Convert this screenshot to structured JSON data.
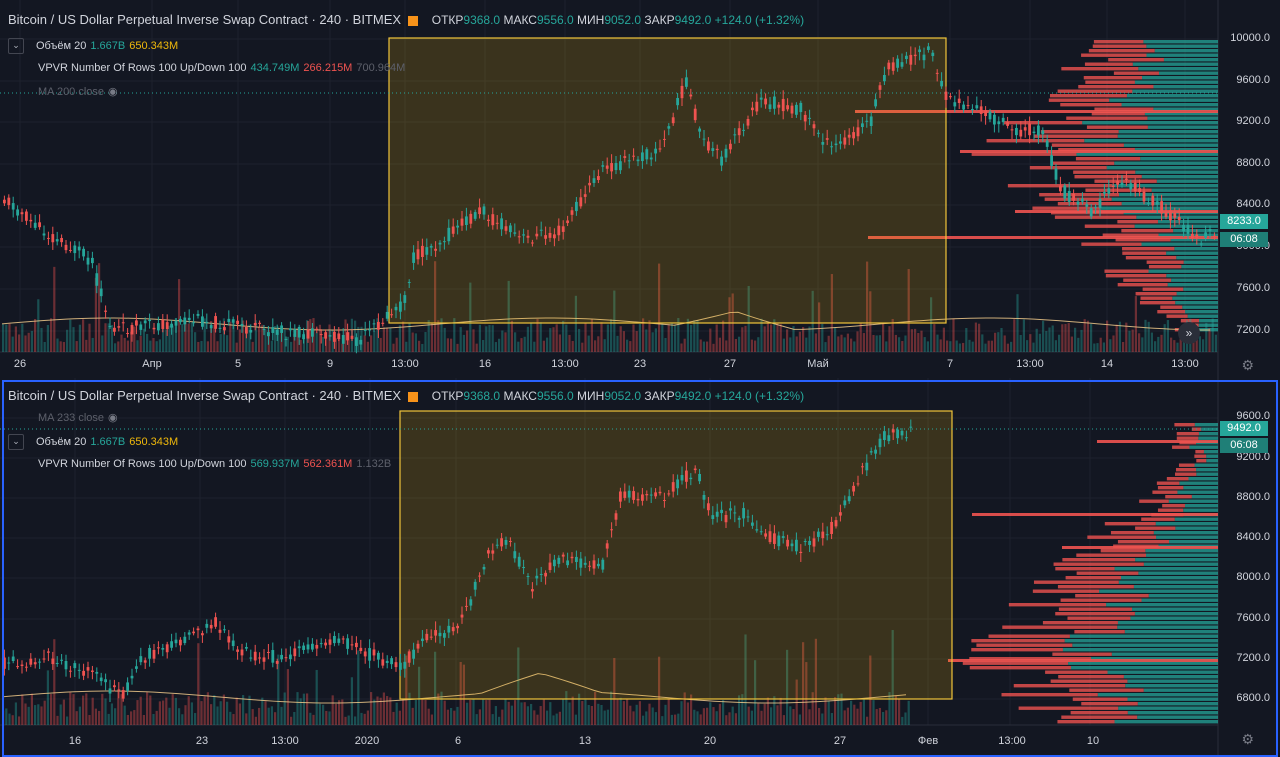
{
  "colors": {
    "up": "#26a69a",
    "down": "#ef5350",
    "bg": "#131722",
    "box": "#f0b90b",
    "accent": "#2962ff"
  },
  "top": {
    "title": "Bitcoin / US Dollar Perpetual Inverse Swap Contract · 240 · BITMEX",
    "ohlc": {
      "o_label": "ОТКР",
      "o": "9368.0",
      "h_label": "МАКС",
      "h": "9556.0",
      "l_label": "МИН",
      "l": "9052.0",
      "c_label": "ЗАКР",
      "c": "9492.0",
      "chg": "+124.0 (+1.32%)"
    },
    "volume": {
      "label": "Объём 20",
      "v1": "1.667B",
      "v2": "650.343M"
    },
    "vpvr": {
      "label": "VPVR Number Of Rows 100 Up/Down 100",
      "up": "434.749M",
      "down": "266.215M",
      "total": "700.964M"
    },
    "ma": {
      "label": "MA 200 close"
    },
    "y_ticks": [
      "10000.0",
      "9600.0",
      "9200.0",
      "8800.0",
      "8400.0",
      "8000.0",
      "7600.0",
      "7200.0"
    ],
    "price_tag": "8233.0",
    "time_tag": "06:08",
    "x_ticks": [
      "26",
      "Апр",
      "5",
      "9",
      "13:00",
      "16",
      "13:00",
      "23",
      "27",
      "Май",
      "7",
      "13:00",
      "14",
      "13:00"
    ]
  },
  "bottom": {
    "title": "Bitcoin / US Dollar Perpetual Inverse Swap Contract · 240 · BITMEX",
    "ohlc": {
      "o_label": "ОТКР",
      "o": "9368.0",
      "h_label": "МАКС",
      "h": "9556.0",
      "l_label": "МИН",
      "l": "9052.0",
      "c_label": "ЗАКР",
      "c": "9492.0",
      "chg": "+124.0 (+1.32%)"
    },
    "ma": {
      "label": "MA 233 close"
    },
    "volume": {
      "label": "Объём 20",
      "v1": "1.667B",
      "v2": "650.343M"
    },
    "vpvr": {
      "label": "VPVR Number Of Rows 100 Up/Down 100",
      "up": "569.937M",
      "down": "562.361M",
      "total": "1.132B"
    },
    "y_ticks": [
      "9600.0",
      "9200.0",
      "8800.0",
      "8400.0",
      "8000.0",
      "7600.0",
      "7200.0",
      "6800.0"
    ],
    "price_tag": "9492.0",
    "time_tag": "06:08",
    "x_ticks": [
      "16",
      "23",
      "13:00",
      "2020",
      "6",
      "13",
      "20",
      "27",
      "Фев",
      "13:00",
      "10"
    ]
  }
}
